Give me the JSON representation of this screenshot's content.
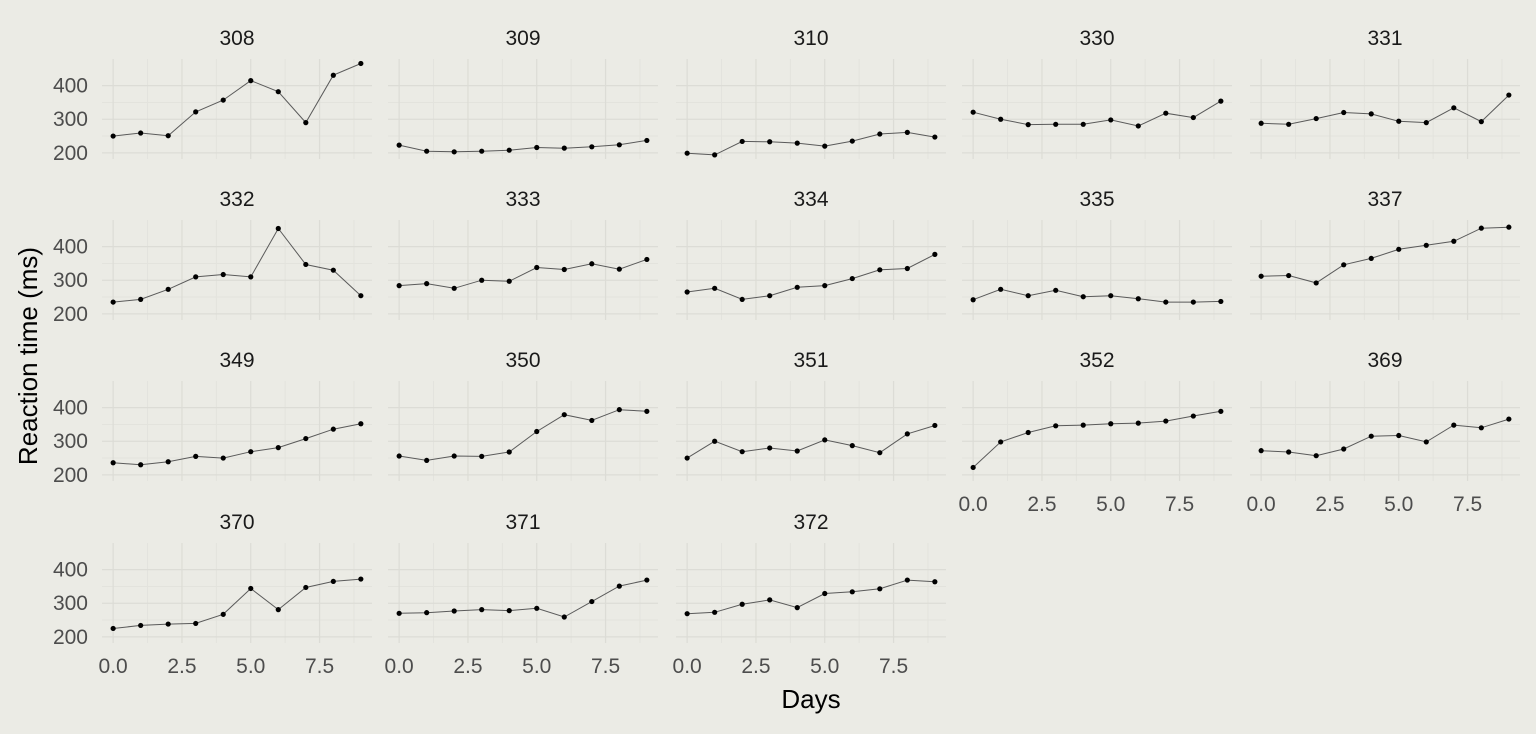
{
  "chart_data": {
    "type": "line",
    "xlabel": "Days",
    "ylabel": "Reaction time (ms)",
    "xlim": [
      0,
      9
    ],
    "ylim": [
      194,
      467
    ],
    "x_ticks": [
      0,
      2.5,
      5,
      7.5
    ],
    "x_tick_labels": [
      "0.0",
      "2.5",
      "5.0",
      "7.5"
    ],
    "y_ticks": [
      200,
      300,
      400
    ],
    "y_tick_labels": [
      "200",
      "300",
      "400"
    ],
    "grid": true,
    "facet_columns": 5,
    "x": [
      0,
      1,
      2,
      3,
      4,
      5,
      6,
      7,
      8,
      9
    ],
    "facets": [
      {
        "name": "308",
        "values": [
          250,
          259,
          251,
          322,
          357,
          415,
          382,
          290,
          431,
          466
        ]
      },
      {
        "name": "309",
        "values": [
          223,
          205,
          203,
          205,
          208,
          216,
          214,
          218,
          224,
          237
        ]
      },
      {
        "name": "310",
        "values": [
          199,
          194,
          234,
          233,
          229,
          220,
          235,
          256,
          261,
          247
        ]
      },
      {
        "name": "330",
        "values": [
          321,
          300,
          284,
          285,
          285,
          298,
          280,
          318,
          305,
          354
        ]
      },
      {
        "name": "331",
        "values": [
          288,
          285,
          302,
          320,
          316,
          294,
          290,
          334,
          293,
          372
        ]
      },
      {
        "name": "332",
        "values": [
          235,
          243,
          273,
          310,
          317,
          310,
          454,
          347,
          330,
          254
        ]
      },
      {
        "name": "333",
        "values": [
          284,
          290,
          276,
          300,
          297,
          338,
          332,
          349,
          333,
          362
        ]
      },
      {
        "name": "334",
        "values": [
          265,
          276,
          243,
          254,
          279,
          284,
          305,
          331,
          335,
          377
        ]
      },
      {
        "name": "335",
        "values": [
          242,
          273,
          254,
          270,
          251,
          254,
          245,
          235,
          235,
          237
        ]
      },
      {
        "name": "337",
        "values": [
          312,
          314,
          292,
          346,
          365,
          392,
          404,
          416,
          455,
          458
        ]
      },
      {
        "name": "349",
        "values": [
          236,
          230,
          239,
          255,
          250,
          269,
          281,
          308,
          336,
          352
        ]
      },
      {
        "name": "350",
        "values": [
          256,
          243,
          256,
          255,
          268,
          329,
          379,
          362,
          394,
          389
        ]
      },
      {
        "name": "351",
        "values": [
          250,
          300,
          269,
          280,
          271,
          304,
          287,
          266,
          322,
          347
        ]
      },
      {
        "name": "352",
        "values": [
          222,
          298,
          326,
          346,
          348,
          352,
          354,
          360,
          375,
          389
        ]
      },
      {
        "name": "369",
        "values": [
          272,
          268,
          257,
          277,
          315,
          317,
          298,
          348,
          340,
          366
        ]
      },
      {
        "name": "370",
        "values": [
          225,
          234,
          238,
          240,
          267,
          344,
          281,
          347,
          365,
          372
        ]
      },
      {
        "name": "371",
        "values": [
          270,
          272,
          277,
          281,
          278,
          285,
          259,
          305,
          351,
          369
        ]
      },
      {
        "name": "372",
        "values": [
          269,
          273,
          297,
          310,
          287,
          329,
          334,
          343,
          369,
          364
        ]
      }
    ]
  }
}
